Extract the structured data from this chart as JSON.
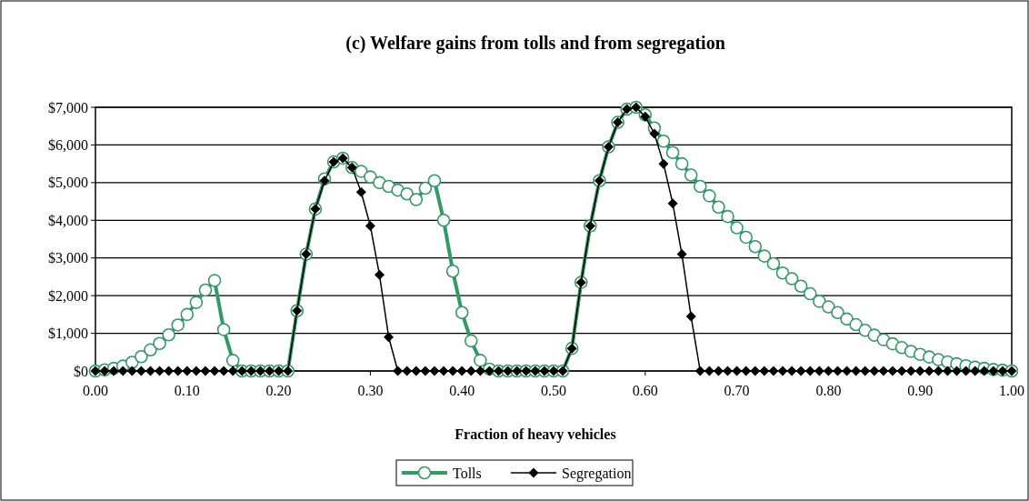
{
  "chart_data": {
    "type": "line",
    "title": "(c) Welfare gains from tolls and from segregation",
    "xlabel": "Fraction of heavy vehicles",
    "x": [
      0,
      0.01,
      0.02,
      0.03,
      0.04,
      0.05,
      0.06,
      0.07,
      0.08,
      0.09,
      0.1,
      0.11,
      0.12,
      0.13,
      0.14,
      0.15,
      0.16,
      0.17,
      0.18,
      0.19,
      0.2,
      0.21,
      0.22,
      0.23,
      0.24,
      0.25,
      0.26,
      0.27,
      0.28,
      0.29,
      0.3,
      0.31,
      0.32,
      0.33,
      0.34,
      0.35,
      0.36,
      0.37,
      0.38,
      0.39,
      0.4,
      0.41,
      0.42,
      0.43,
      0.44,
      0.45,
      0.46,
      0.47,
      0.48,
      0.49,
      0.5,
      0.51,
      0.52,
      0.53,
      0.54,
      0.55,
      0.56,
      0.57,
      0.58,
      0.59,
      0.6,
      0.61,
      0.62,
      0.63,
      0.64,
      0.65,
      0.66,
      0.67,
      0.68,
      0.69,
      0.7,
      0.71,
      0.72,
      0.73,
      0.74,
      0.75,
      0.76,
      0.77,
      0.78,
      0.79,
      0.8,
      0.81,
      0.82,
      0.83,
      0.84,
      0.85,
      0.86,
      0.87,
      0.88,
      0.89,
      0.9,
      0.91,
      0.92,
      0.93,
      0.94,
      0.95,
      0.96,
      0.97,
      0.98,
      0.99,
      1
    ],
    "series": [
      {
        "name": "Tolls",
        "color": "#339966",
        "marker": "circle",
        "values": [
          0,
          30,
          70,
          130,
          230,
          380,
          560,
          730,
          960,
          1220,
          1500,
          1820,
          2150,
          2400,
          1100,
          280,
          0,
          0,
          0,
          0,
          0,
          0,
          1600,
          3100,
          4300,
          5100,
          5550,
          5650,
          5400,
          5300,
          5150,
          5000,
          4900,
          4800,
          4700,
          4550,
          4850,
          5050,
          4000,
          2650,
          1550,
          800,
          280,
          50,
          0,
          0,
          0,
          0,
          0,
          0,
          0,
          0,
          600,
          2350,
          3850,
          5050,
          5950,
          6600,
          6950,
          7000,
          6800,
          6450,
          6100,
          5800,
          5500,
          5200,
          4900,
          4650,
          4350,
          4100,
          3800,
          3550,
          3300,
          3050,
          2850,
          2600,
          2450,
          2250,
          2050,
          1850,
          1700,
          1550,
          1380,
          1230,
          1080,
          950,
          830,
          720,
          620,
          520,
          440,
          370,
          300,
          240,
          190,
          140,
          100,
          70,
          40,
          20,
          0
        ]
      },
      {
        "name": "Segregation",
        "color": "#000000",
        "marker": "diamond",
        "values": [
          0,
          0,
          0,
          0,
          0,
          0,
          0,
          0,
          0,
          0,
          0,
          0,
          0,
          0,
          0,
          0,
          0,
          0,
          0,
          0,
          0,
          0,
          1600,
          3100,
          4300,
          5050,
          5550,
          5650,
          5400,
          4750,
          3850,
          2550,
          900,
          0,
          0,
          0,
          0,
          0,
          0,
          0,
          0,
          0,
          0,
          0,
          0,
          0,
          0,
          0,
          0,
          0,
          0,
          0,
          600,
          2350,
          3850,
          5050,
          5950,
          6600,
          6950,
          7000,
          6750,
          6300,
          5500,
          4450,
          3100,
          1450,
          0,
          0,
          0,
          0,
          0,
          0,
          0,
          0,
          0,
          0,
          0,
          0,
          0,
          0,
          0,
          0,
          0,
          0,
          0,
          0,
          0,
          0,
          0,
          0,
          0,
          0,
          0,
          0,
          0,
          0,
          0,
          0,
          0,
          0,
          0
        ]
      }
    ],
    "xlim": [
      0,
      1
    ],
    "xticks": [
      {
        "value": 0,
        "label": "0.00"
      },
      {
        "value": 0.1,
        "label": "0.10"
      },
      {
        "value": 0.2,
        "label": "0.20"
      },
      {
        "value": 0.3,
        "label": "0.30"
      },
      {
        "value": 0.4,
        "label": "0.40"
      },
      {
        "value": 0.5,
        "label": "0.50"
      },
      {
        "value": 0.6,
        "label": "0.60"
      },
      {
        "value": 0.7,
        "label": "0.70"
      },
      {
        "value": 0.8,
        "label": "0.80"
      },
      {
        "value": 0.9,
        "label": "0.90"
      },
      {
        "value": 1,
        "label": "1.00"
      }
    ],
    "ylim": [
      0,
      7000
    ],
    "yticks": [
      {
        "value": 0,
        "label": "$0"
      },
      {
        "value": 1000,
        "label": "$1,000"
      },
      {
        "value": 2000,
        "label": "$2,000"
      },
      {
        "value": 3000,
        "label": "$3,000"
      },
      {
        "value": 4000,
        "label": "$4,000"
      },
      {
        "value": 5000,
        "label": "$5,000"
      },
      {
        "value": 6000,
        "label": "$6,000"
      },
      {
        "value": 7000,
        "label": "$7,000"
      }
    ],
    "grid": "y",
    "legend": "bottom"
  }
}
